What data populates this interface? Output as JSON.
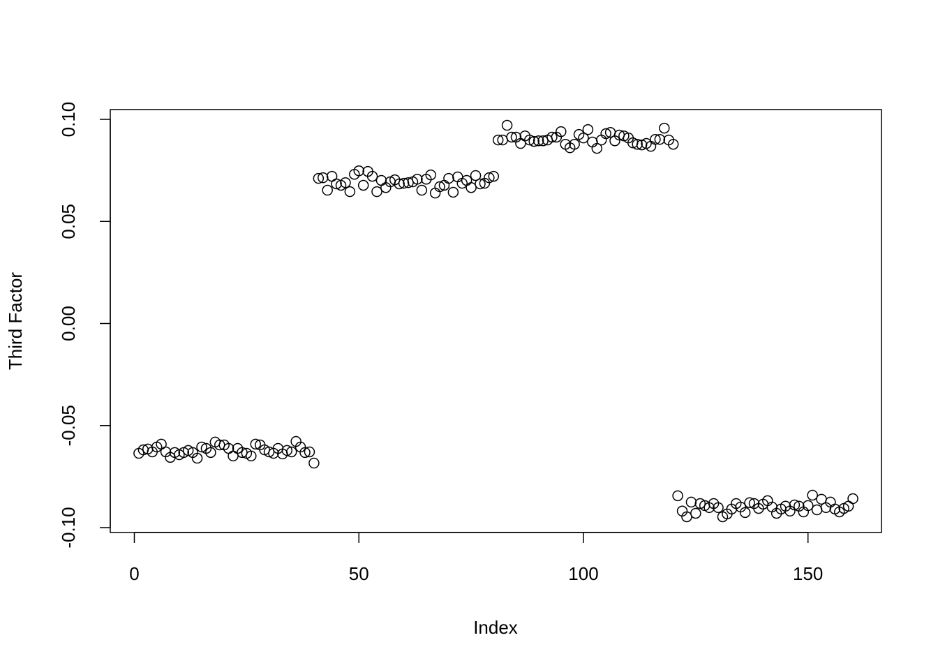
{
  "chart_data": {
    "type": "scatter",
    "xlabel": "Index",
    "ylabel": "Third Factor",
    "color": "#000000",
    "xlim": [
      -5.36,
      166.36
    ],
    "ylim": [
      -0.1024,
      0.1048
    ],
    "xticks": [
      0,
      50,
      100,
      150
    ],
    "yticks": [
      {
        "value": -0.1,
        "label": "-0.10"
      },
      {
        "value": -0.05,
        "label": "-0.05"
      },
      {
        "value": 0,
        "label": "0.00"
      },
      {
        "value": 0.05,
        "label": "0.05"
      },
      {
        "value": 0.1,
        "label": "0.10"
      }
    ],
    "x": [
      1,
      2,
      3,
      4,
      5,
      6,
      7,
      8,
      9,
      10,
      11,
      12,
      13,
      14,
      15,
      16,
      17,
      18,
      19,
      20,
      21,
      22,
      23,
      24,
      25,
      26,
      27,
      28,
      29,
      30,
      31,
      32,
      33,
      34,
      35,
      36,
      37,
      38,
      39,
      40,
      41,
      42,
      43,
      44,
      45,
      46,
      47,
      48,
      49,
      50,
      51,
      52,
      53,
      54,
      55,
      56,
      57,
      58,
      59,
      60,
      61,
      62,
      63,
      64,
      65,
      66,
      67,
      68,
      69,
      70,
      71,
      72,
      73,
      74,
      75,
      76,
      77,
      78,
      79,
      80,
      81,
      82,
      83,
      84,
      85,
      86,
      87,
      88,
      89,
      90,
      91,
      92,
      93,
      94,
      95,
      96,
      97,
      98,
      99,
      100,
      101,
      102,
      103,
      104,
      105,
      106,
      107,
      108,
      109,
      110,
      111,
      112,
      113,
      114,
      115,
      116,
      117,
      118,
      119,
      120,
      121,
      122,
      123,
      124,
      125,
      126,
      127,
      128,
      129,
      130,
      131,
      132,
      133,
      134,
      135,
      136,
      137,
      138,
      139,
      140,
      141,
      142,
      143,
      144,
      145,
      146,
      147,
      148,
      149,
      150,
      151,
      152,
      153,
      154,
      155,
      156,
      157,
      158,
      159,
      160
    ],
    "values": [
      -0.0636,
      -0.0619,
      -0.0615,
      -0.0629,
      -0.0605,
      -0.0591,
      -0.0629,
      -0.0656,
      -0.0632,
      -0.0643,
      -0.0632,
      -0.0622,
      -0.0632,
      -0.066,
      -0.0605,
      -0.0612,
      -0.0632,
      -0.0581,
      -0.0595,
      -0.0595,
      -0.0612,
      -0.0649,
      -0.0612,
      -0.0632,
      -0.0636,
      -0.0649,
      -0.0591,
      -0.0595,
      -0.0619,
      -0.0629,
      -0.0636,
      -0.0612,
      -0.0639,
      -0.0622,
      -0.0629,
      -0.0578,
      -0.0605,
      -0.0632,
      -0.0629,
      -0.0684,
      0.0711,
      0.0714,
      0.0653,
      0.0721,
      0.0684,
      0.0677,
      0.069,
      0.0646,
      0.0731,
      0.0748,
      0.0677,
      0.0745,
      0.0721,
      0.0646,
      0.0701,
      0.0666,
      0.0694,
      0.0704,
      0.0684,
      0.0687,
      0.069,
      0.0694,
      0.0707,
      0.0653,
      0.0707,
      0.0728,
      0.0639,
      0.067,
      0.0677,
      0.0711,
      0.0643,
      0.0718,
      0.0687,
      0.0701,
      0.0666,
      0.0725,
      0.0684,
      0.0687,
      0.0714,
      0.0721,
      0.0899,
      0.0899,
      0.0971,
      0.0913,
      0.0913,
      0.0882,
      0.0919,
      0.0899,
      0.0892,
      0.0895,
      0.0895,
      0.0899,
      0.0913,
      0.0913,
      0.094,
      0.0878,
      0.0861,
      0.0878,
      0.0926,
      0.0909,
      0.095,
      0.0889,
      0.0858,
      0.0899,
      0.093,
      0.0936,
      0.0895,
      0.0923,
      0.0919,
      0.0909,
      0.0885,
      0.0878,
      0.0875,
      0.0882,
      0.0868,
      0.0902,
      0.0902,
      0.0957,
      0.0899,
      0.0878,
      -0.0844,
      -0.0919,
      -0.0947,
      -0.0875,
      -0.093,
      -0.0882,
      -0.0892,
      -0.0902,
      -0.0882,
      -0.0902,
      -0.0947,
      -0.0933,
      -0.0909,
      -0.0882,
      -0.0899,
      -0.0926,
      -0.0878,
      -0.0882,
      -0.0906,
      -0.0885,
      -0.0868,
      -0.0899,
      -0.093,
      -0.0909,
      -0.0895,
      -0.0919,
      -0.0889,
      -0.0895,
      -0.0923,
      -0.0892,
      -0.0841,
      -0.0913,
      -0.0861,
      -0.0902,
      -0.0875,
      -0.0909,
      -0.0923,
      -0.0906,
      -0.0895,
      -0.0858
    ]
  }
}
